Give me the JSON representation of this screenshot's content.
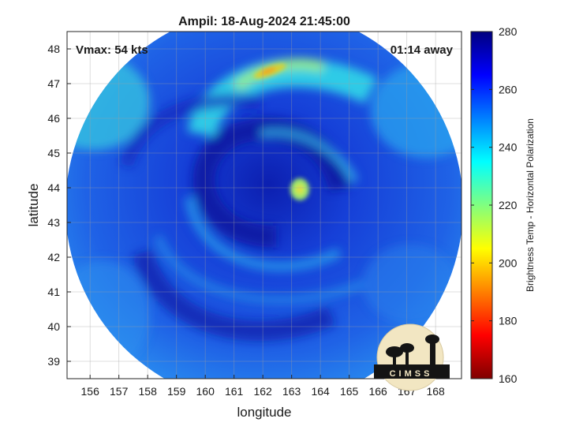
{
  "title": "Ampil: 18-Aug-2024 21:45:00",
  "vmax_label": "Vmax: 54 kts",
  "time_offset_label": "01:14 away",
  "map": {
    "xlabel": "longitude",
    "ylabel": "latitude",
    "xlim": [
      155.2,
      168.9
    ],
    "ylim": [
      38.5,
      48.5
    ],
    "x_ticks": [
      "156",
      "157",
      "158",
      "159",
      "160",
      "161",
      "162",
      "163",
      "164",
      "165",
      "166",
      "167",
      "168"
    ],
    "y_ticks": [
      "39",
      "40",
      "41",
      "42",
      "43",
      "44",
      "45",
      "46",
      "47",
      "48"
    ],
    "grid": true,
    "storm_center": {
      "lon": 162.3,
      "lat": 43.7
    }
  },
  "colorbar": {
    "label": "Brightness Temp - Horizontal Polarization",
    "range": [
      160,
      280
    ],
    "ticks": [
      "160",
      "180",
      "200",
      "220",
      "240",
      "260",
      "280"
    ],
    "colors": [
      "#7f0000",
      "#ff0000",
      "#ff8000",
      "#ffff00",
      "#80ff80",
      "#00ffff",
      "#0080ff",
      "#0000ff",
      "#00007f"
    ]
  },
  "logo": {
    "text": "CIMSS"
  },
  "colors": {
    "disc_base": "#1f55e0",
    "dark_band": "#0a1aa8",
    "cyan_band": "#28c8f0"
  }
}
